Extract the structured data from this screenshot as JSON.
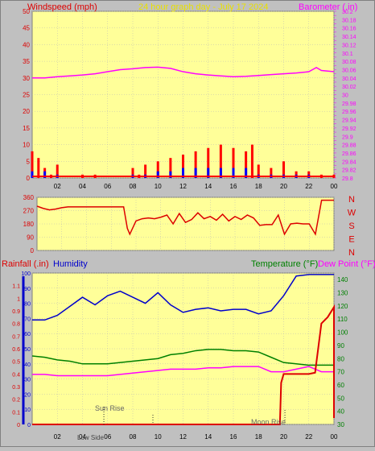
{
  "colors": {
    "panel_bg": "#ffff99",
    "frame_bg": "#c0c0c0",
    "grid": "#b8b8b8",
    "wind_gust": "#ff0000",
    "wind_avg": "#0000ff",
    "wind_low": "#008000",
    "barometer": "#ff00ff",
    "direction": "#dd0000",
    "rain": "#dd0000",
    "humidity": "#0000cc",
    "temperature": "#008000",
    "dewpoint": "#ff00ff",
    "header_title": "#e8e000"
  },
  "header": {
    "title": "24 hour graph day - July 17 2024"
  },
  "chart_data": [
    {
      "id": "wind-barometer",
      "type": "line",
      "title": "24 hour graph day - July 17 2024",
      "left_axis": {
        "label": "Windspeed (mph)",
        "range": [
          0,
          50
        ],
        "ticks": [
          "0",
          "5",
          "10",
          "15",
          "20",
          "25",
          "30",
          "35",
          "40",
          "45",
          "50"
        ]
      },
      "right_axis": {
        "label": "Barometer (.in)",
        "range": [
          29.8,
          30.2
        ],
        "ticks": [
          "29.8",
          "29.81",
          "29.82",
          "29.83",
          "29.84",
          "29.85",
          "29.86",
          "29.87",
          "29.88",
          "29.89",
          "29.9",
          "29.91",
          "29.92",
          "29.93",
          "29.94",
          "29.95",
          "29.96",
          "29.97",
          "29.98",
          "29.99",
          "30",
          "30.01",
          "30.02",
          "30.03",
          "30.04",
          "30.05",
          "30.06",
          "30.07",
          "30.08",
          "30.09",
          "30.1",
          "30.11",
          "30.12",
          "30.13",
          "30.14",
          "30.15",
          "30.16",
          "30.17",
          "30.18",
          "30.19",
          "30.2"
        ]
      },
      "x_ticks": [
        "02",
        "04",
        "06",
        "08",
        "10",
        "12",
        "14",
        "16",
        "18",
        "20",
        "22",
        "00"
      ],
      "x_range": [
        0,
        24
      ],
      "grid": true,
      "series": [
        {
          "axis": "right",
          "x": [
            0,
            1,
            2,
            3,
            4,
            5,
            6,
            7,
            8,
            9,
            10,
            11,
            12,
            13,
            14,
            15,
            16,
            17,
            18,
            19,
            20,
            21,
            22,
            22.6,
            23,
            24
          ],
          "y": [
            30.04,
            30.04,
            30.043,
            30.045,
            30.047,
            30.05,
            30.055,
            30.06,
            30.062,
            30.065,
            30.066,
            30.063,
            30.055,
            30.05,
            30.047,
            30.045,
            30.043,
            30.044,
            30.046,
            30.048,
            30.05,
            30.052,
            30.055,
            30.065,
            30.058,
            30.055
          ]
        },
        {
          "axis": "left",
          "style": "gust",
          "x": [
            0,
            0.5,
            1,
            1.5,
            2,
            3,
            4,
            5,
            6,
            7,
            8,
            8.5,
            9,
            10,
            11,
            12,
            13,
            14,
            15,
            16,
            17,
            17.5,
            18,
            19,
            20,
            21,
            22,
            23,
            24
          ],
          "y": [
            8,
            6,
            3,
            1,
            4,
            0,
            1,
            1,
            0,
            0,
            3,
            1,
            4,
            5,
            6,
            7,
            8,
            9,
            10,
            9,
            8,
            10,
            4,
            3,
            5,
            2,
            2,
            1,
            1
          ]
        },
        {
          "axis": "left",
          "style": "avg",
          "x": [
            0,
            1,
            2,
            3,
            4,
            5,
            6,
            7,
            8,
            9,
            10,
            11,
            12,
            13,
            14,
            15,
            16,
            17,
            18,
            19,
            20,
            21,
            22,
            23,
            24
          ],
          "y": [
            2,
            2,
            1,
            0,
            0,
            0,
            0,
            0,
            1,
            1,
            2,
            2,
            3,
            3,
            3,
            3,
            3,
            3,
            1,
            1,
            1,
            1,
            1,
            0,
            0
          ]
        }
      ]
    },
    {
      "id": "wind-direction",
      "type": "scatter",
      "left_axis": {
        "range": [
          0,
          360
        ],
        "ticks": [
          "0",
          "90",
          "180",
          "270",
          "360"
        ]
      },
      "right_labels": [
        "N",
        "W",
        "S",
        "E",
        "N"
      ],
      "x_range": [
        0,
        24
      ],
      "grid": true,
      "points_x": [
        0,
        0.5,
        1,
        1.5,
        2,
        2.5,
        3,
        4,
        5,
        6,
        7,
        7.3,
        7.5,
        8,
        8.5,
        9,
        9.5,
        10,
        10.5,
        11,
        11.5,
        12,
        12.5,
        13,
        13.5,
        14,
        14.5,
        15,
        15.5,
        16,
        16.5,
        17,
        17.5,
        18,
        18.5,
        19,
        19.5,
        20,
        20.5,
        21,
        21.5,
        22,
        22.5,
        23,
        23.5,
        24
      ],
      "points_y": [
        300,
        285,
        275,
        280,
        290,
        295,
        295,
        295,
        295,
        295,
        295,
        150,
        110,
        200,
        215,
        220,
        215,
        225,
        240,
        180,
        250,
        190,
        210,
        255,
        215,
        230,
        205,
        245,
        200,
        230,
        210,
        240,
        220,
        170,
        175,
        175,
        240,
        110,
        180,
        185,
        180,
        180,
        110,
        340,
        340,
        340
      ]
    },
    {
      "id": "rain-humidity-temp",
      "type": "line",
      "left_axis_1": {
        "label": "Rainfall (.in)",
        "range": [
          0,
          1.2
        ],
        "ticks": [
          "0",
          "0.1",
          "0.2",
          "0.3",
          "0.4",
          "0.5",
          "0.6",
          "0.7",
          "0.8",
          "0.9",
          "1",
          "1.1"
        ]
      },
      "left_axis_2": {
        "label": "Humidity",
        "range": [
          0,
          100
        ],
        "ticks": [
          "0",
          "10",
          "20",
          "30",
          "40",
          "50",
          "60",
          "70",
          "80",
          "90",
          "100"
        ]
      },
      "right_axis": {
        "label_temp": "Temperature (°F)",
        "label_dew": "Dew Point (°F)",
        "range": [
          30,
          145
        ],
        "ticks": [
          "30",
          "40",
          "50",
          "60",
          "70",
          "80",
          "90",
          "100",
          "110",
          "120",
          "130",
          "140"
        ]
      },
      "x_ticks": [
        "02",
        "04",
        "06",
        "08",
        "10",
        "12",
        "14",
        "16",
        "18",
        "20",
        "22",
        "00"
      ],
      "x_range": [
        0,
        24
      ],
      "annotations": [
        "Sun Rise",
        "Low Side",
        "Moon Rise"
      ],
      "series": [
        {
          "name": "Humidity",
          "axis": "left2",
          "x": [
            0,
            1,
            2,
            3,
            4,
            5,
            6,
            7,
            8,
            9,
            10,
            11,
            12,
            13,
            14,
            15,
            16,
            17,
            18,
            19,
            20,
            21,
            22,
            23,
            24
          ],
          "y": [
            69,
            69,
            72,
            78,
            84,
            79,
            85,
            88,
            84,
            80,
            87,
            79,
            74,
            76,
            77,
            75,
            76,
            76,
            73,
            75,
            85,
            98,
            99,
            99,
            99
          ]
        },
        {
          "name": "Temperature",
          "axis": "right",
          "x": [
            0,
            1,
            2,
            3,
            4,
            5,
            6,
            7,
            8,
            9,
            10,
            11,
            12,
            13,
            14,
            15,
            16,
            17,
            18,
            19,
            20,
            21,
            22,
            23,
            24
          ],
          "y": [
            82,
            81,
            79,
            78,
            76,
            76,
            76,
            77,
            78,
            79,
            80,
            83,
            84,
            86,
            87,
            87,
            86,
            86,
            85,
            81,
            77,
            76,
            75,
            75,
            75
          ]
        },
        {
          "name": "Dew Point",
          "axis": "right",
          "x": [
            0,
            1,
            2,
            3,
            4,
            5,
            6,
            7,
            8,
            9,
            10,
            11,
            12,
            13,
            14,
            15,
            16,
            17,
            18,
            19,
            20,
            21,
            22,
            23,
            24
          ],
          "y": [
            68,
            68,
            67,
            67,
            67,
            67,
            67,
            68,
            69,
            70,
            71,
            72,
            72,
            72,
            73,
            73,
            74,
            74,
            74,
            70,
            70,
            72,
            74,
            70,
            70
          ]
        },
        {
          "name": "Rainfall",
          "axis": "left1",
          "x": [
            0,
            19.7,
            19.8,
            20,
            21,
            22,
            22.5,
            23,
            23.5,
            24,
            24.01
          ],
          "y": [
            0,
            0,
            0.33,
            0.4,
            0.4,
            0.4,
            0.41,
            0.8,
            0.85,
            0.93,
            0.05
          ]
        }
      ]
    }
  ]
}
